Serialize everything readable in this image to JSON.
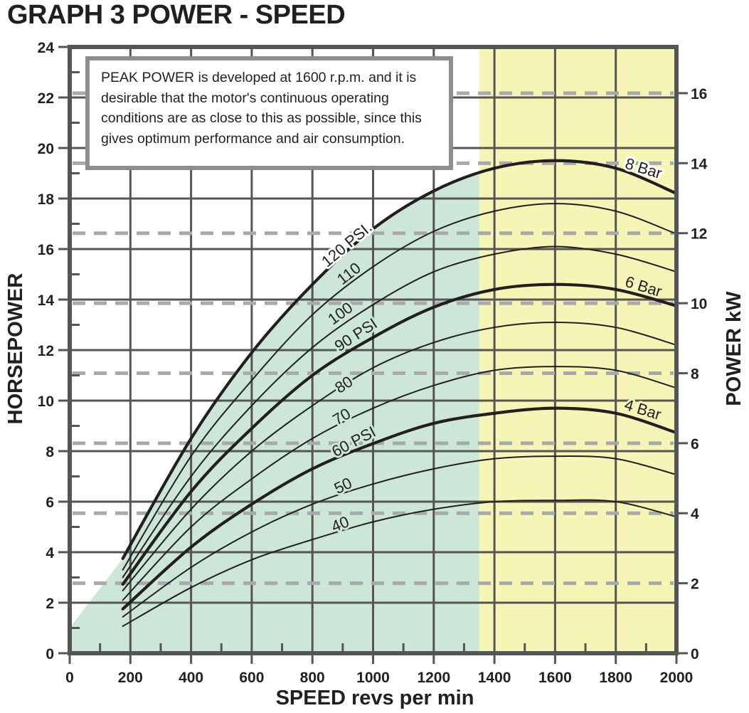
{
  "chart_data": {
    "type": "line",
    "title": "GRAPH 3 POWER - SPEED",
    "xlabel": "SPEED revs per min",
    "ylabel": "HORSEPOWER",
    "y2label": "POWER kW",
    "xlim": [
      0,
      2000
    ],
    "ylim": [
      0,
      24
    ],
    "y2lim": [
      0,
      17.3
    ],
    "xticks": [
      "0",
      "200",
      "400",
      "600",
      "800",
      "1000",
      "1200",
      "1400",
      "1600",
      "1800",
      "2000"
    ],
    "yticks": [
      "0",
      "2",
      "4",
      "6",
      "8",
      "10",
      "12",
      "14",
      "16",
      "18",
      "20",
      "22",
      "24"
    ],
    "y2ticks": [
      "0",
      "2",
      "4",
      "6",
      "8",
      "10",
      "12",
      "14",
      "16"
    ],
    "grid": true,
    "annotation": "PEAK POWER is developed at 1600 r.p.m. and it is desirable that the motor's continuous operating conditions are as close to this as possible, since this gives optimum performance and air consumption.",
    "regions": [
      {
        "name": "green-zone",
        "color": "#cce6d8",
        "x_range": [
          0,
          1350
        ],
        "under_series": "120 PSI."
      },
      {
        "name": "optimum-zone",
        "color": "#f5f5b6",
        "x_range": [
          1350,
          2000
        ]
      }
    ],
    "x": [
      175,
      400,
      600,
      800,
      1000,
      1200,
      1400,
      1600,
      1800,
      2000
    ],
    "series": [
      {
        "name": "120 PSI.",
        "bar_label": "8 Bar",
        "thick": true,
        "values": [
          3.75,
          8.5,
          11.9,
          14.6,
          16.8,
          18.3,
          19.2,
          19.5,
          19.2,
          18.2
        ]
      },
      {
        "name": "110",
        "thick": false,
        "values": [
          3.3,
          7.8,
          10.8,
          13.4,
          15.3,
          16.7,
          17.5,
          17.8,
          17.5,
          16.6
        ]
      },
      {
        "name": "100",
        "thick": false,
        "values": [
          3.0,
          7.0,
          9.8,
          12.1,
          13.8,
          15.1,
          15.8,
          16.1,
          15.8,
          15.1
        ]
      },
      {
        "name": "90 PSI",
        "bar_label": "6 Bar",
        "thick": true,
        "values": [
          2.73,
          6.4,
          8.9,
          11.0,
          12.5,
          13.7,
          14.4,
          14.6,
          14.4,
          13.75
        ]
      },
      {
        "name": "80",
        "thick": false,
        "values": [
          2.48,
          5.7,
          8.0,
          9.8,
          11.3,
          12.3,
          12.9,
          13.1,
          12.9,
          12.2
        ]
      },
      {
        "name": "70",
        "thick": false,
        "values": [
          2.1,
          5.0,
          6.9,
          8.5,
          9.7,
          10.6,
          11.2,
          11.35,
          11.2,
          10.5
        ]
      },
      {
        "name": "60 PSI",
        "bar_label": "4 Bar",
        "thick": true,
        "values": [
          1.75,
          4.2,
          5.9,
          7.3,
          8.3,
          9.1,
          9.5,
          9.7,
          9.5,
          8.73
        ]
      },
      {
        "name": "50",
        "thick": false,
        "values": [
          1.44,
          3.4,
          4.8,
          5.9,
          6.7,
          7.3,
          7.7,
          7.8,
          7.7,
          7.07
        ]
      },
      {
        "name": "40",
        "thick": false,
        "values": [
          1.07,
          2.6,
          3.7,
          4.5,
          5.2,
          5.7,
          6.0,
          6.05,
          6.0,
          5.4
        ]
      }
    ],
    "colors": {
      "grid": "#555555",
      "dash": "#a7a9ac",
      "line": "#231f20",
      "green": "#cce6d8",
      "yellow": "#f5f5b6"
    }
  }
}
